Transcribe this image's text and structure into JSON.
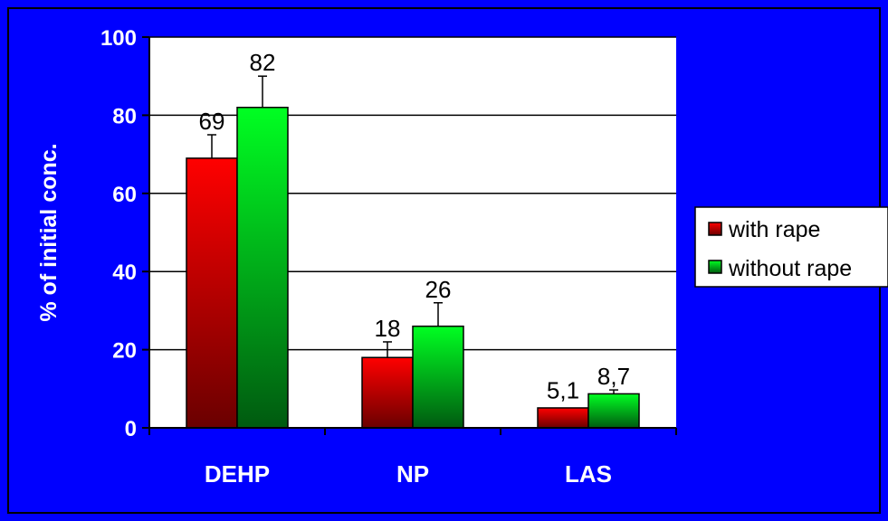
{
  "colors": {
    "background": "#0000ff",
    "plot_area": "#ffffff",
    "series_red": "#ff0000",
    "series_green": "#00ff00"
  },
  "chart_data": {
    "type": "bar",
    "title": "",
    "xlabel": "",
    "ylabel": "% of initial conc.",
    "categories": [
      "DEHP",
      "NP",
      "LAS"
    ],
    "ylim": [
      0,
      100
    ],
    "yticks": [
      0,
      20,
      40,
      60,
      80,
      100
    ],
    "grid": true,
    "legend_position": "right",
    "series": [
      {
        "name": "with rape",
        "values": [
          69,
          18,
          5.1
        ],
        "labels": [
          "69",
          "18",
          "5,1"
        ],
        "error": [
          6,
          4,
          0
        ]
      },
      {
        "name": "without rape",
        "values": [
          82,
          26,
          8.7
        ],
        "labels": [
          "82",
          "26",
          "8,7"
        ],
        "error": [
          8,
          6,
          1
        ]
      }
    ]
  }
}
